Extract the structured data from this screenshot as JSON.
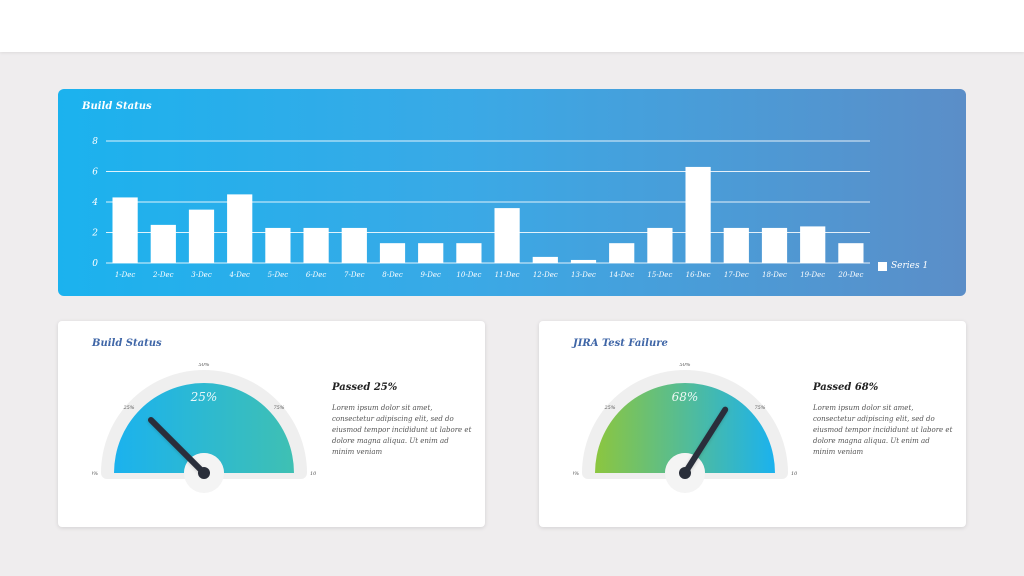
{
  "chart_data": [
    {
      "type": "bar",
      "title": "Build Status",
      "categories": [
        "1-Dec",
        "2-Dec",
        "3-Dec",
        "4-Dec",
        "5-Dec",
        "6-Dec",
        "7-Dec",
        "8-Dec",
        "9-Dec",
        "10-Dec",
        "11-Dec",
        "12-Dec",
        "13-Dec",
        "14-Dec",
        "15-Dec",
        "16-Dec",
        "17-Dec",
        "18-Dec",
        "19-Dec",
        "20-Dec"
      ],
      "series": [
        {
          "name": "Series 1",
          "values": [
            4.3,
            2.5,
            3.5,
            4.5,
            2.3,
            2.3,
            2.3,
            1.3,
            1.3,
            1.3,
            3.6,
            0.4,
            0.2,
            1.3,
            2.3,
            6.3,
            2.3,
            2.3,
            2.4,
            1.3
          ]
        }
      ],
      "yticks": [
        "0",
        "2",
        "4",
        "6",
        "8"
      ],
      "ylim": [
        0,
        8
      ],
      "grid": true,
      "legend_position": "bottom-right"
    },
    {
      "type": "gauge",
      "title": "Build Status",
      "value": 25,
      "value_label": "25%",
      "ticks": [
        "0%",
        "25%",
        "50%",
        "75%",
        "100%"
      ]
    },
    {
      "type": "gauge",
      "title": "JIRA Test Failure",
      "value": 68,
      "value_label": "68%",
      "ticks": [
        "0%",
        "25%",
        "50%",
        "75%",
        "100%"
      ]
    }
  ],
  "cards": [
    {
      "title": "Build Status",
      "heading": "Passed 25%",
      "body": "Lorem ipsum dolor sit amet, consectetur adipiscing elit, sed do eiusmod tempor incididunt ut labore et dolore magna aliqua. Ut enim ad minim veniam"
    },
    {
      "title": "JIRA Test Failure",
      "heading": "Passed 68%",
      "body": "Lorem ipsum dolor sit amet, consectetur adipiscing elit, sed do eiusmod tempor incididunt ut labore et dolore magna aliqua. Ut enim ad minim veniam"
    }
  ],
  "colors": {
    "bar": "#ffffff",
    "gauge1_start": "#1bb2ee",
    "gauge1_end": "#3fc0b3",
    "gauge2_start": "#8cc63f",
    "gauge2_end": "#1bb2ee",
    "needle": "#2a2f3a"
  }
}
